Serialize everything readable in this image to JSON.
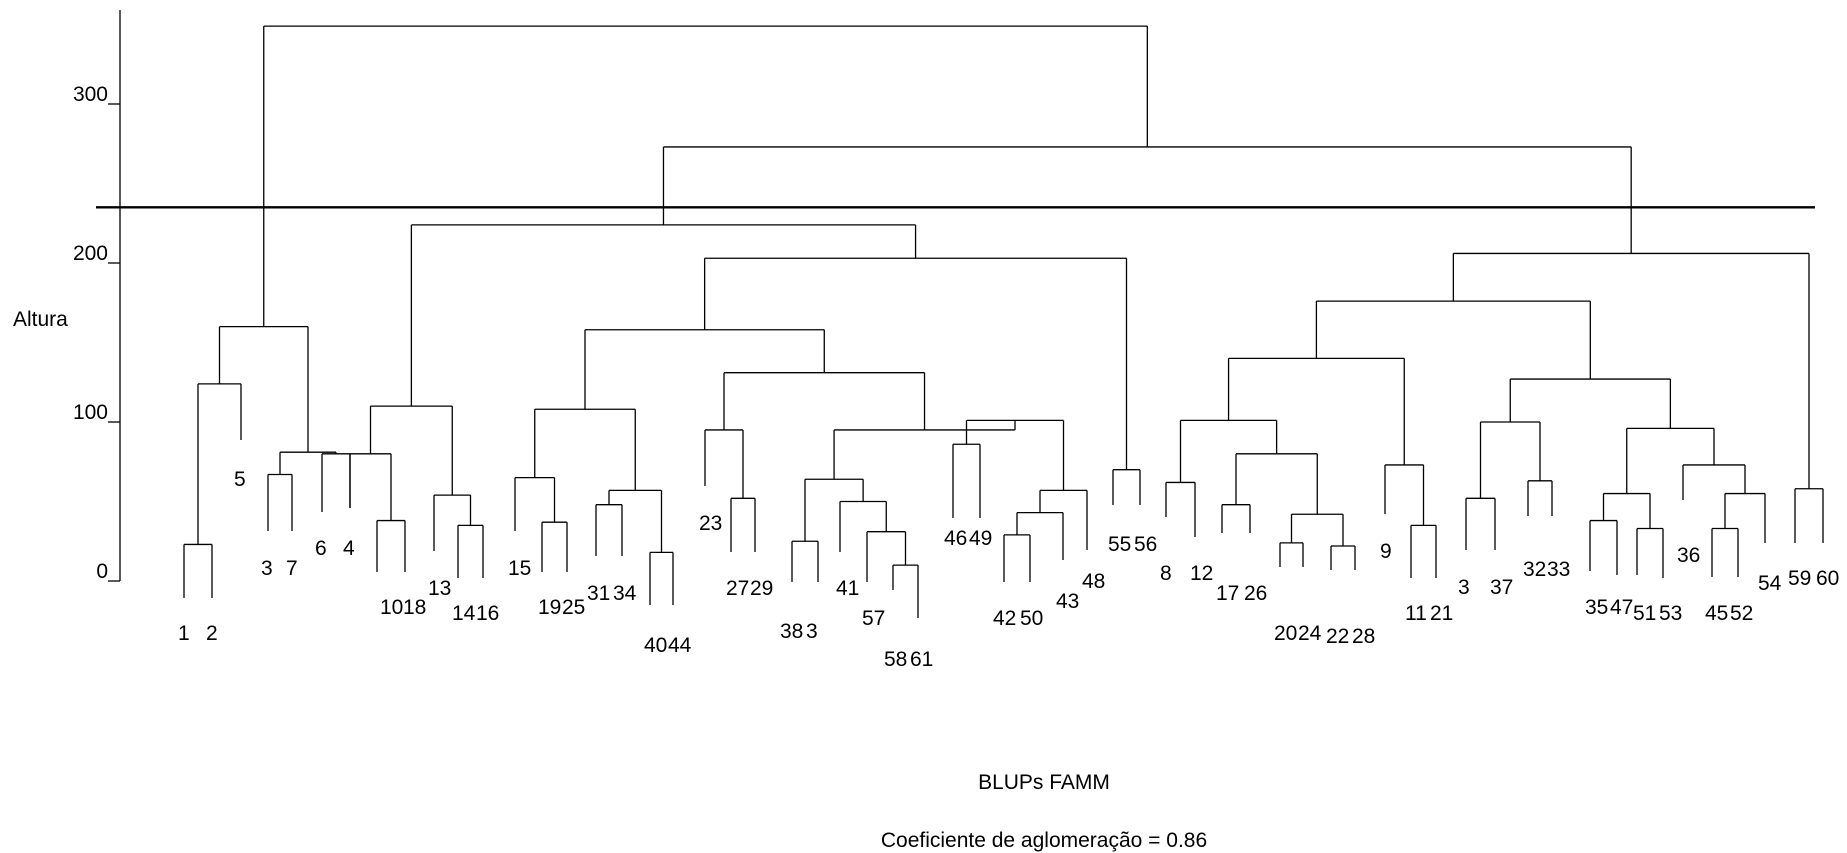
{
  "chart_data": {
    "type": "dendrogram",
    "ylabel": "Altura",
    "ylim": [
      0,
      370
    ],
    "yticks": [
      "0",
      "100",
      "200",
      "300"
    ],
    "cut_height": 235,
    "xlabel": "BLUPs FAMM",
    "note": "Coeficiente de aglomeração =  0.86",
    "links": [
      [
        0,
        23,
        0,
        0
      ],
      [
        0,
        160,
        0,
        0
      ],
      [
        0,
        0,
        0,
        0
      ],
      [
        0,
        0,
        0,
        0
      ]
    ],
    "leaf_labels": [
      "1",
      "2",
      "5",
      "3",
      "7",
      "6",
      "4",
      "10",
      "18",
      "13",
      "14",
      "16",
      "15",
      "19",
      "25",
      "31",
      "34",
      "40",
      "44",
      "23",
      "27",
      "29",
      "38",
      "3",
      "41",
      "57",
      "58",
      "61",
      "46",
      "49",
      "42",
      "50",
      "43",
      "48",
      "55",
      "56",
      "8",
      "12",
      "17",
      "26",
      "20",
      "24",
      "22",
      "28",
      "9",
      "11",
      "21",
      "3",
      "37",
      "32",
      "33",
      "35",
      "47",
      "51",
      "53",
      "36",
      "45",
      "52",
      "54",
      "59",
      "60"
    ],
    "leaf_heights": [
      0,
      0,
      93,
      30,
      30,
      45,
      45,
      0,
      0,
      20,
      0,
      0,
      20,
      0,
      0,
      8,
      8,
      0,
      0,
      45,
      10,
      10,
      0,
      0,
      8,
      0,
      0,
      0,
      33,
      33,
      0,
      0,
      0,
      0,
      33,
      33,
      30,
      30,
      10,
      10,
      0,
      0,
      0,
      0,
      15,
      0,
      0,
      10,
      10,
      10,
      10,
      0,
      0,
      0,
      0,
      40,
      0,
      0,
      33,
      33,
      33
    ],
    "merges": [
      [
        -1,
        -2,
        23
      ],
      [
        -3,
        -4,
        0
      ],
      [
        -4,
        -5,
        67
      ],
      [
        -6,
        -7,
        0
      ],
      [
        -8,
        -9,
        38
      ],
      [
        -12,
        -13,
        35
      ],
      [
        -10,
        -11,
        0
      ],
      [
        -14,
        -15,
        38
      ],
      [
        -16,
        -17,
        48
      ],
      [
        -18,
        -19,
        18
      ],
      [
        -21,
        -22,
        52
      ],
      [
        -23,
        -24,
        25
      ],
      [
        -27,
        -28,
        10
      ],
      [
        -26,
        -27,
        31
      ],
      [
        -29,
        -30,
        86
      ],
      [
        -31,
        -32,
        29
      ],
      [
        -35,
        -36,
        70
      ],
      [
        -37,
        -38,
        62
      ],
      [
        -39,
        -40,
        48
      ],
      [
        -41,
        -42,
        24
      ],
      [
        -43,
        -44,
        22
      ],
      [
        -46,
        -47,
        35
      ],
      [
        -48,
        -49,
        52
      ],
      [
        -50,
        -51,
        63
      ],
      [
        -52,
        -53,
        38
      ],
      [
        -54,
        -55,
        33
      ],
      [
        -57,
        -58,
        33
      ],
      [
        -60,
        -61,
        58
      ]
    ]
  }
}
